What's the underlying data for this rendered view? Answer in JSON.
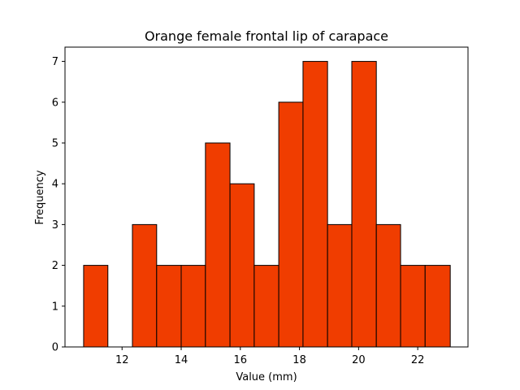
{
  "chart_data": {
    "type": "histogram",
    "title": "Orange female frontal lip of carapace",
    "xlabel": "Value (mm)",
    "ylabel": "Frequency",
    "bar_color": "#f03d00",
    "edge_color": "#000000",
    "bin_edges": [
      10.7,
      11.52,
      12.35,
      13.17,
      14.0,
      14.82,
      15.65,
      16.47,
      17.3,
      18.12,
      18.95,
      19.77,
      20.6,
      21.42,
      22.25,
      23.1
    ],
    "counts": [
      2,
      0,
      3,
      2,
      2,
      5,
      4,
      2,
      6,
      7,
      3,
      7,
      3,
      2,
      2
    ],
    "xlim": [
      10.07,
      23.7
    ],
    "ylim": [
      0,
      7.35
    ],
    "xticks": [
      12,
      14,
      16,
      18,
      20,
      22
    ],
    "yticks": [
      0,
      1,
      2,
      3,
      4,
      5,
      6,
      7
    ],
    "grid": false,
    "legend": "none"
  }
}
